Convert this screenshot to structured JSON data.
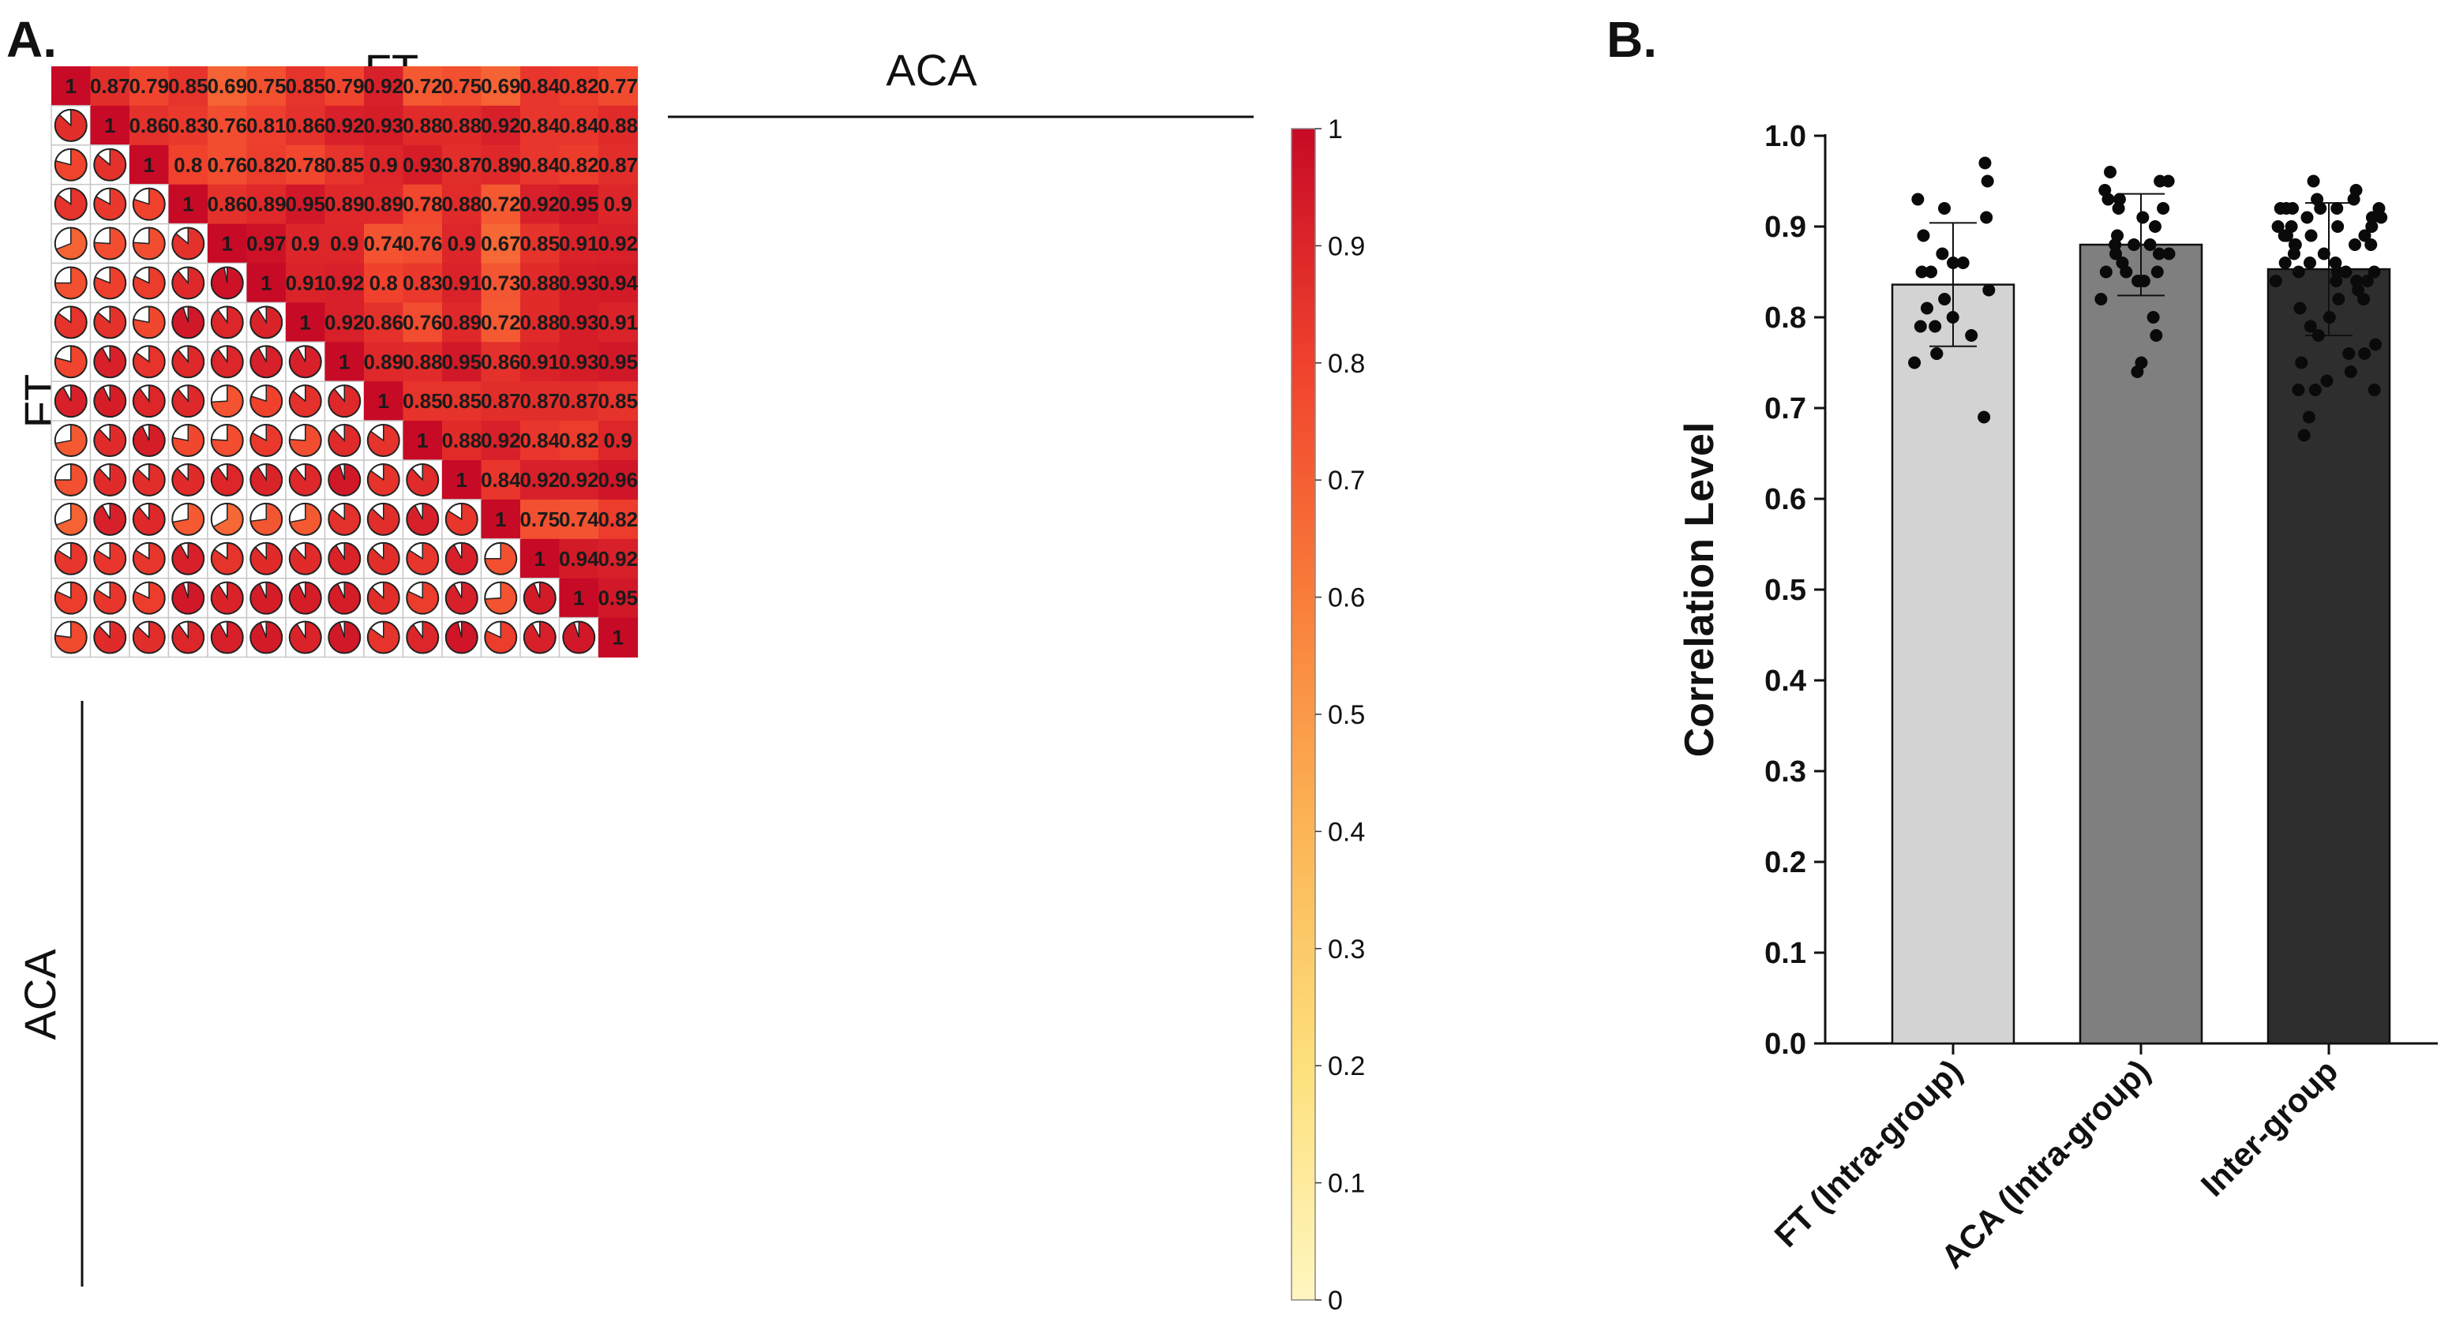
{
  "panels": {
    "a": "A.",
    "b": "B."
  },
  "chart_data": [
    {
      "type": "heatmap",
      "subtype": "correlation-matrix (upper: values, lower: pies)",
      "group_labels": {
        "top": [
          "FT",
          "ACA"
        ],
        "left": [
          "FT",
          "ACA"
        ]
      },
      "groups": [
        {
          "name": "FT",
          "size": 7
        },
        {
          "name": "ACA",
          "size": 8
        }
      ],
      "matrix": [
        [
          1,
          0.87,
          0.79,
          0.85,
          0.69,
          0.75,
          0.85,
          0.79,
          0.92,
          0.72,
          0.75,
          0.69,
          0.84,
          0.82,
          0.77
        ],
        [
          0.87,
          1,
          0.86,
          0.83,
          0.76,
          0.81,
          0.86,
          0.92,
          0.93,
          0.88,
          0.88,
          0.92,
          0.84,
          0.84,
          0.88
        ],
        [
          0.79,
          0.86,
          1,
          0.8,
          0.76,
          0.82,
          0.78,
          0.85,
          0.9,
          0.93,
          0.87,
          0.89,
          0.84,
          0.82,
          0.87
        ],
        [
          0.85,
          0.83,
          0.8,
          1,
          0.86,
          0.89,
          0.95,
          0.89,
          0.89,
          0.78,
          0.88,
          0.72,
          0.92,
          0.95,
          0.9
        ],
        [
          0.69,
          0.76,
          0.76,
          0.86,
          1,
          0.97,
          0.9,
          0.9,
          0.74,
          0.76,
          0.9,
          0.67,
          0.85,
          0.91,
          0.92
        ],
        [
          0.75,
          0.81,
          0.82,
          0.89,
          0.97,
          1,
          0.91,
          0.92,
          0.8,
          0.83,
          0.91,
          0.73,
          0.88,
          0.93,
          0.94
        ],
        [
          0.85,
          0.86,
          0.78,
          0.95,
          0.9,
          0.91,
          1,
          0.92,
          0.86,
          0.76,
          0.89,
          0.72,
          0.88,
          0.93,
          0.91
        ],
        [
          0.79,
          0.92,
          0.85,
          0.89,
          0.9,
          0.92,
          0.92,
          1,
          0.89,
          0.88,
          0.95,
          0.86,
          0.91,
          0.93,
          0.95
        ],
        [
          0.92,
          0.93,
          0.9,
          0.89,
          0.74,
          0.8,
          0.86,
          0.89,
          1,
          0.85,
          0.85,
          0.87,
          0.87,
          0.87,
          0.85
        ],
        [
          0.72,
          0.88,
          0.93,
          0.78,
          0.76,
          0.83,
          0.76,
          0.88,
          0.85,
          1,
          0.88,
          0.92,
          0.84,
          0.82,
          0.9
        ],
        [
          0.75,
          0.88,
          0.87,
          0.88,
          0.9,
          0.91,
          0.89,
          0.95,
          0.85,
          0.88,
          1,
          0.84,
          0.92,
          0.92,
          0.96
        ],
        [
          0.69,
          0.92,
          0.89,
          0.72,
          0.67,
          0.73,
          0.72,
          0.86,
          0.87,
          0.92,
          0.84,
          1,
          0.75,
          0.74,
          0.82
        ],
        [
          0.84,
          0.84,
          0.84,
          0.92,
          0.85,
          0.88,
          0.88,
          0.91,
          0.87,
          0.84,
          0.92,
          0.75,
          1,
          0.94,
          0.92
        ],
        [
          0.82,
          0.84,
          0.82,
          0.95,
          0.91,
          0.93,
          0.93,
          0.93,
          0.87,
          0.82,
          0.92,
          0.74,
          0.94,
          1,
          0.95
        ],
        [
          0.77,
          0.88,
          0.87,
          0.9,
          0.92,
          0.94,
          0.91,
          0.95,
          0.85,
          0.9,
          0.96,
          0.82,
          0.92,
          0.95,
          1
        ]
      ],
      "colorbar": {
        "range": [
          0,
          1
        ],
        "ticks": [
          "0",
          "0.1",
          "0.2",
          "0.3",
          "0.4",
          "0.5",
          "0.6",
          "0.7",
          "0.8",
          "0.9",
          "1"
        ],
        "colors": [
          "#fff6c0",
          "#fde07c",
          "#fcb556",
          "#f97d3a",
          "#f0412d",
          "#c70a26"
        ]
      }
    },
    {
      "type": "bar",
      "title": "",
      "xlabel": "",
      "ylabel": "Correlation Level",
      "ylim": [
        0,
        1
      ],
      "yticks": [
        "0.0",
        "0.1",
        "0.2",
        "0.3",
        "0.4",
        "0.5",
        "0.6",
        "0.7",
        "0.8",
        "0.9",
        "1.0"
      ],
      "categories": [
        "FT (Intra-group)",
        "ACA (Intra-group)",
        "Inter-group"
      ],
      "values": [
        0.836,
        0.88,
        0.853
      ],
      "sd": [
        0.068,
        0.056,
        0.073
      ],
      "bar_colors": [
        "#d3d3d3",
        "#7f7f7f",
        "#2e2e2e"
      ],
      "points": [
        [
          0.97,
          0.95,
          0.93,
          0.92,
          0.91,
          0.89,
          0.87,
          0.86,
          0.86,
          0.85,
          0.85,
          0.83,
          0.82,
          0.81,
          0.8,
          0.79,
          0.79,
          0.78,
          0.76,
          0.76,
          0.75,
          0.69
        ],
        [
          0.96,
          0.95,
          0.95,
          0.94,
          0.93,
          0.93,
          0.92,
          0.92,
          0.91,
          0.9,
          0.89,
          0.88,
          0.88,
          0.88,
          0.87,
          0.87,
          0.87,
          0.86,
          0.85,
          0.85,
          0.85,
          0.84,
          0.84,
          0.82,
          0.8,
          0.78,
          0.75,
          0.74
        ],
        [
          0.95,
          0.94,
          0.93,
          0.93,
          0.92,
          0.92,
          0.92,
          0.92,
          0.92,
          0.92,
          0.91,
          0.91,
          0.91,
          0.9,
          0.9,
          0.9,
          0.9,
          0.89,
          0.89,
          0.89,
          0.89,
          0.88,
          0.88,
          0.88,
          0.88,
          0.87,
          0.87,
          0.86,
          0.86,
          0.86,
          0.85,
          0.85,
          0.85,
          0.85,
          0.84,
          0.84,
          0.84,
          0.84,
          0.83,
          0.82,
          0.82,
          0.81,
          0.8,
          0.79,
          0.78,
          0.77,
          0.76,
          0.76,
          0.75,
          0.74,
          0.73,
          0.72,
          0.72,
          0.72,
          0.69,
          0.67
        ]
      ]
    }
  ]
}
